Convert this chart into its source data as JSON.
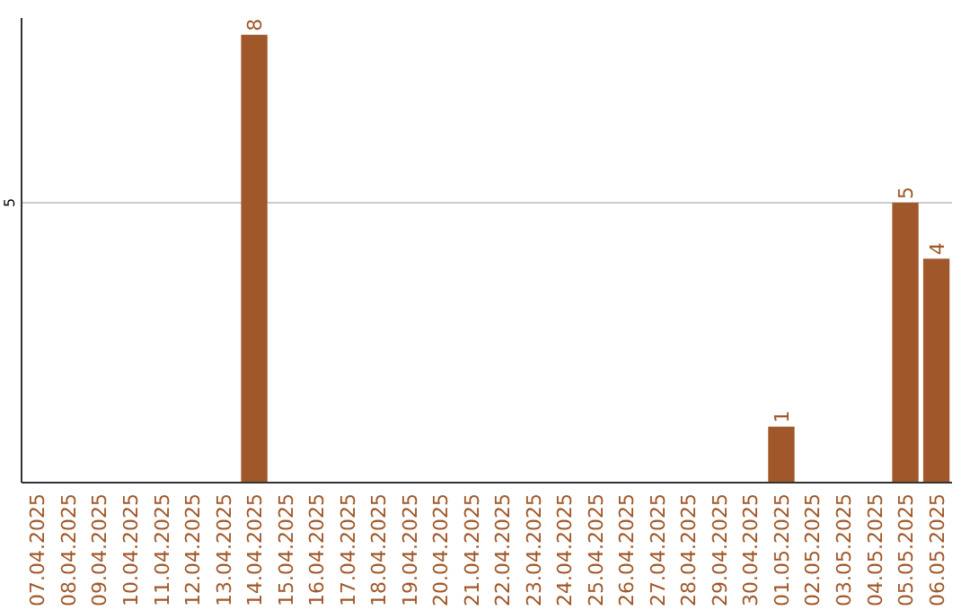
{
  "chart_data": {
    "type": "bar",
    "categories": [
      "07.04.2025",
      "08.04.2025",
      "09.04.2025",
      "10.04.2025",
      "11.04.2025",
      "12.04.2025",
      "13.04.2025",
      "14.04.2025",
      "15.04.2025",
      "16.04.2025",
      "17.04.2025",
      "18.04.2025",
      "19.04.2025",
      "20.04.2025",
      "21.04.2025",
      "22.04.2025",
      "23.04.2025",
      "24.04.2025",
      "25.04.2025",
      "26.04.2025",
      "27.04.2025",
      "28.04.2025",
      "29.04.2025",
      "30.04.2025",
      "01.05.2025",
      "02.05.2025",
      "03.05.2025",
      "04.05.2025",
      "05.05.2025",
      "06.05.2025"
    ],
    "values": [
      0,
      0,
      0,
      0,
      0,
      0,
      0,
      8,
      0,
      0,
      0,
      0,
      0,
      0,
      0,
      0,
      0,
      0,
      0,
      0,
      0,
      0,
      0,
      0,
      1,
      0,
      0,
      0,
      5,
      4
    ],
    "value_labels": [
      null,
      null,
      null,
      null,
      null,
      null,
      null,
      "8",
      null,
      null,
      null,
      null,
      null,
      null,
      null,
      null,
      null,
      null,
      null,
      null,
      null,
      null,
      null,
      null,
      "1",
      null,
      null,
      null,
      "5",
      "4"
    ],
    "color": "#a0582a",
    "ylim": [
      0,
      8.3
    ],
    "yticks": [
      5
    ],
    "grid": "y"
  }
}
